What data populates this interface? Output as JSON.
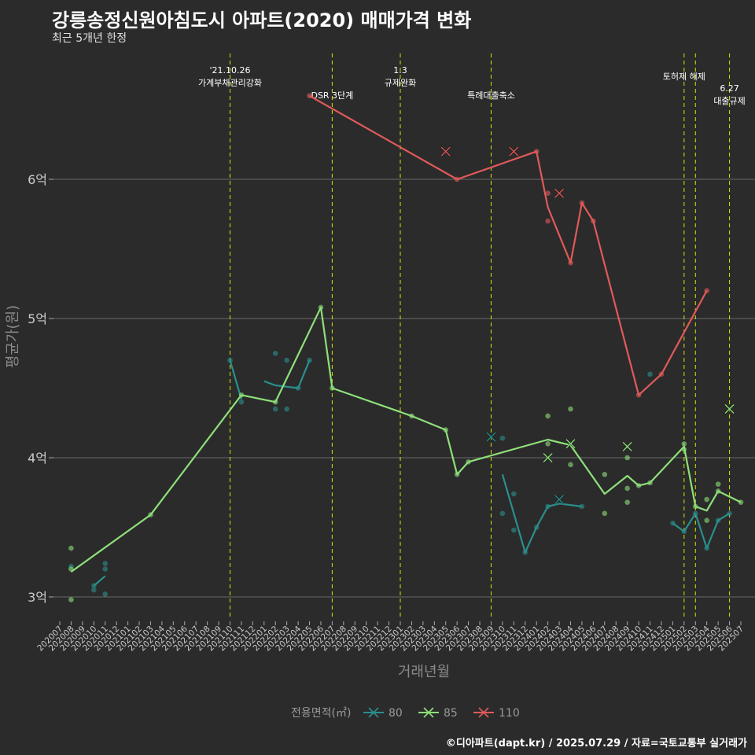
{
  "title": "강릉송정신원아침도시 아파트(2020) 매매가격 변화",
  "subtitle": "최근 5개년 한정",
  "caption": "©디아파트(dapt.kr) / 2025.07.29 / 자료=국토교통부 실거래가",
  "colors": {
    "background": "#2b2b2b",
    "grid": "#6a6a6a",
    "vline": "#d4e300",
    "s80": "#2a8f8c",
    "s85": "#8ee07a",
    "s110": "#e05a5a"
  },
  "chart_data": {
    "type": "line",
    "title": "강릉송정신원아침도시 아파트(2020) 매매가격 변화",
    "xlabel": "거래년월",
    "ylabel": "평균가(원)",
    "ylim": [
      2.85,
      6.6
    ],
    "yticks": [
      {
        "v": 3,
        "label": "3억"
      },
      {
        "v": 4,
        "label": "4억"
      },
      {
        "v": 5,
        "label": "5억"
      },
      {
        "v": 6,
        "label": "6억"
      }
    ],
    "categories": [
      "202007",
      "202008",
      "202009",
      "202010",
      "202011",
      "202012",
      "202101",
      "202102",
      "202103",
      "202104",
      "202105",
      "202106",
      "202107",
      "202108",
      "202109",
      "202110",
      "202111",
      "202112",
      "202201",
      "202202",
      "202203",
      "202204",
      "202205",
      "202206",
      "202207",
      "202208",
      "202209",
      "202210",
      "202211",
      "202212",
      "202301",
      "202302",
      "202303",
      "202304",
      "202305",
      "202306",
      "202307",
      "202308",
      "202309",
      "202310",
      "202311",
      "202312",
      "202401",
      "202402",
      "202403",
      "202404",
      "202405",
      "202406",
      "202407",
      "202408",
      "202409",
      "202410",
      "202411",
      "202412",
      "202501",
      "202502",
      "202503",
      "202504",
      "202505",
      "202506",
      "202507"
    ],
    "legend_title": "전용면적(㎡)",
    "legend_position": "bottom",
    "grid": true,
    "vlines": [
      {
        "x": "202110",
        "label": "'21.10.26\n가계부채관리강화",
        "row": 0
      },
      {
        "x": "202207",
        "label": "DSR 3단계",
        "row": 2
      },
      {
        "x": "202301",
        "label": "1.3\n규제완화",
        "row": 0
      },
      {
        "x": "202309",
        "label": "특례대출축소",
        "row": 2
      },
      {
        "x": "202502",
        "label": "토허제 해제",
        "row": 1
      },
      {
        "x": "202503",
        "label": "",
        "row": 0
      },
      {
        "x": "202506",
        "label": "6.27\n대출규제",
        "row": 3
      }
    ],
    "series": [
      {
        "name": "80",
        "color": "#2a8f8c",
        "line": [
          [
            [
              "202010",
              3.08
            ],
            [
              "202011",
              3.15
            ]
          ],
          [
            [
              "202110",
              4.7
            ],
            [
              "202111",
              4.42
            ]
          ],
          [
            [
              "202201",
              4.55
            ],
            [
              "202202",
              4.52
            ],
            [
              "202204",
              4.5
            ],
            [
              "202205",
              4.7
            ]
          ],
          [
            [
              "202310",
              3.88
            ],
            [
              "202311",
              3.6
            ],
            [
              "202312",
              3.32
            ],
            [
              "202401",
              3.5
            ],
            [
              "202402",
              3.65
            ],
            [
              "202403",
              3.67
            ],
            [
              "202404",
              3.66
            ],
            [
              "202405",
              3.65
            ]
          ],
          [
            [
              "202501",
              3.53
            ],
            [
              "202502",
              3.47
            ],
            [
              "202503",
              3.6
            ],
            [
              "202504",
              3.35
            ],
            [
              "202505",
              3.55
            ],
            [
              "202506",
              3.6
            ]
          ]
        ],
        "points": [
          [
            "202008",
            3.22
          ],
          [
            "202010",
            3.05
          ],
          [
            "202010",
            3.08
          ],
          [
            "202011",
            3.02
          ],
          [
            "202011",
            3.2
          ],
          [
            "202011",
            3.24
          ],
          [
            "202110",
            4.7
          ],
          [
            "202111",
            4.4
          ],
          [
            "202202",
            4.35
          ],
          [
            "202202",
            4.75
          ],
          [
            "202203",
            4.35
          ],
          [
            "202203",
            4.7
          ],
          [
            "202204",
            4.5
          ],
          [
            "202205",
            4.7
          ],
          [
            "202310",
            3.6
          ],
          [
            "202310",
            4.14
          ],
          [
            "202311",
            3.48
          ],
          [
            "202311",
            3.74
          ],
          [
            "202312",
            3.32
          ],
          [
            "202401",
            3.5
          ],
          [
            "202402",
            3.65
          ],
          [
            "202405",
            3.65
          ],
          [
            "202411",
            4.6
          ],
          [
            "202501",
            3.53
          ],
          [
            "202502",
            3.47
          ],
          [
            "202503",
            3.6
          ],
          [
            "202504",
            3.35
          ],
          [
            "202505",
            3.55
          ],
          [
            "202506",
            3.6
          ]
        ],
        "crosses": [
          [
            "202309",
            4.15
          ],
          [
            "202403",
            3.7
          ]
        ]
      },
      {
        "name": "85",
        "color": "#8ee07a",
        "line": [
          [
            [
              "202008",
              3.18
            ],
            [
              "202103",
              3.59
            ],
            [
              "202111",
              4.45
            ],
            [
              "202202",
              4.4
            ],
            [
              "202206",
              5.08
            ],
            [
              "202207",
              4.5
            ],
            [
              "202302",
              4.3
            ],
            [
              "202305",
              4.2
            ],
            [
              "202306",
              3.88
            ],
            [
              "202307",
              3.97
            ],
            [
              "202402",
              4.13
            ],
            [
              "202404",
              4.09
            ],
            [
              "202407",
              3.74
            ],
            [
              "202409",
              3.87
            ],
            [
              "202410",
              3.8
            ],
            [
              "202411",
              3.82
            ],
            [
              "202502",
              4.08
            ],
            [
              "202503",
              3.65
            ],
            [
              "202504",
              3.62
            ],
            [
              "202505",
              3.76
            ],
            [
              "202507",
              3.68
            ]
          ]
        ],
        "points": [
          [
            "202008",
            3.35
          ],
          [
            "202008",
            3.2
          ],
          [
            "202008",
            2.98
          ],
          [
            "202103",
            3.59
          ],
          [
            "202111",
            4.45
          ],
          [
            "202202",
            4.4
          ],
          [
            "202206",
            5.08
          ],
          [
            "202207",
            4.5
          ],
          [
            "202302",
            4.3
          ],
          [
            "202305",
            4.2
          ],
          [
            "202306",
            3.88
          ],
          [
            "202307",
            3.97
          ],
          [
            "202402",
            4.3
          ],
          [
            "202402",
            4.1
          ],
          [
            "202404",
            4.35
          ],
          [
            "202404",
            3.95
          ],
          [
            "202407",
            3.88
          ],
          [
            "202407",
            3.6
          ],
          [
            "202409",
            4.0
          ],
          [
            "202409",
            3.78
          ],
          [
            "202409",
            3.68
          ],
          [
            "202410",
            3.8
          ],
          [
            "202411",
            3.82
          ],
          [
            "202502",
            4.1
          ],
          [
            "202502",
            4.06
          ],
          [
            "202503",
            3.65
          ],
          [
            "202504",
            3.7
          ],
          [
            "202504",
            3.55
          ],
          [
            "202505",
            3.81
          ],
          [
            "202505",
            3.76
          ],
          [
            "202507",
            3.68
          ]
        ],
        "crosses": [
          [
            "202402",
            4.0
          ],
          [
            "202404",
            4.1
          ],
          [
            "202409",
            4.08
          ],
          [
            "202506",
            4.35
          ]
        ]
      },
      {
        "name": "110",
        "color": "#e05a5a",
        "line": [
          [
            [
              "202205",
              6.6
            ],
            [
              "202306",
              6.0
            ],
            [
              "202401",
              6.2
            ],
            [
              "202402",
              5.8
            ],
            [
              "202404",
              5.4
            ],
            [
              "202405",
              5.83
            ],
            [
              "202406",
              5.7
            ],
            [
              "202410",
              4.45
            ],
            [
              "202412",
              4.6
            ],
            [
              "202504",
              5.2
            ]
          ]
        ],
        "points": [
          [
            "202205",
            6.6
          ],
          [
            "202306",
            6.0
          ],
          [
            "202401",
            6.2
          ],
          [
            "202402",
            5.9
          ],
          [
            "202402",
            5.7
          ],
          [
            "202404",
            5.4
          ],
          [
            "202405",
            5.83
          ],
          [
            "202406",
            5.7
          ],
          [
            "202410",
            4.45
          ],
          [
            "202412",
            4.6
          ],
          [
            "202504",
            5.2
          ]
        ],
        "crosses": [
          [
            "202305",
            6.2
          ],
          [
            "202311",
            6.2
          ],
          [
            "202403",
            5.9
          ]
        ]
      }
    ]
  }
}
